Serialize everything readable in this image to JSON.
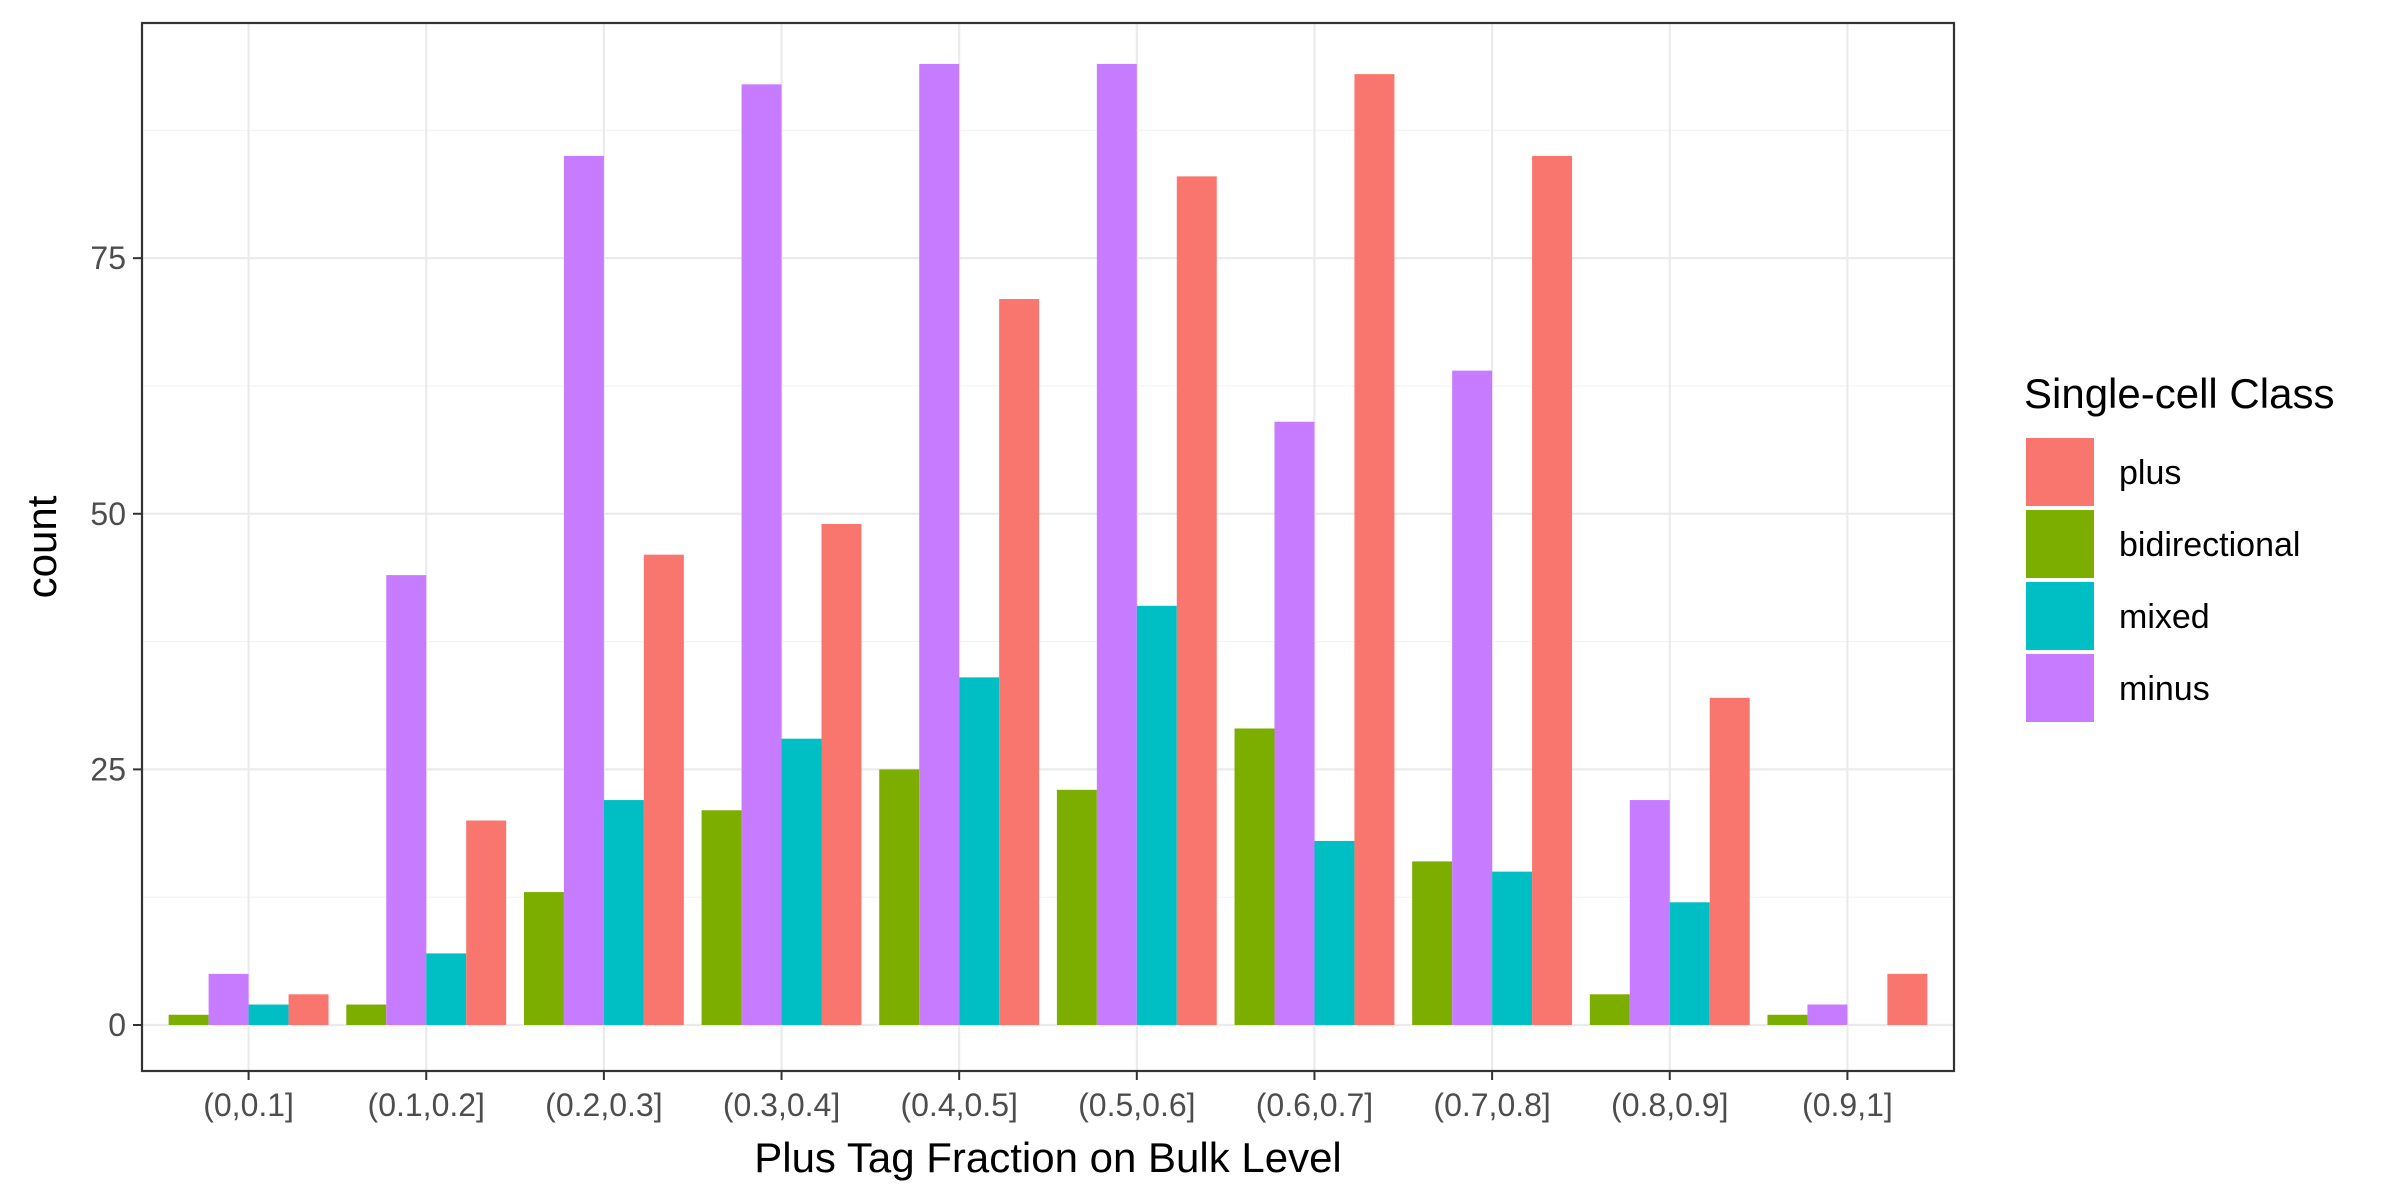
{
  "chart_data": {
    "type": "bar",
    "xlabel": "Plus Tag Fraction on Bulk Level",
    "ylabel": "count",
    "categories": [
      "(0,0.1]",
      "(0.1,0.2]",
      "(0.2,0.3]",
      "(0.3,0.4]",
      "(0.4,0.5]",
      "(0.5,0.6]",
      "(0.6,0.7]",
      "(0.7,0.8]",
      "(0.8,0.9]",
      "(0.9,1]"
    ],
    "yticks": [
      0,
      25,
      50,
      75
    ],
    "ylim": [
      -4.5,
      98
    ],
    "grid": true,
    "legend": {
      "title": "Single-cell Class",
      "position": "right",
      "order": [
        "plus",
        "bidirectional",
        "mixed",
        "minus"
      ]
    },
    "series": [
      {
        "name": "bidirectional",
        "color": "#7CAE00",
        "values": [
          1,
          2,
          13,
          21,
          25,
          23,
          29,
          16,
          3,
          1
        ]
      },
      {
        "name": "minus",
        "color": "#C77CFF",
        "values": [
          5,
          44,
          85,
          92,
          94,
          94,
          59,
          64,
          22,
          2
        ]
      },
      {
        "name": "mixed",
        "color": "#00BFC4",
        "values": [
          2,
          7,
          22,
          28,
          34,
          41,
          18,
          15,
          12,
          null
        ]
      },
      {
        "name": "plus",
        "color": "#F8766D",
        "values": [
          3,
          20,
          46,
          49,
          71,
          83,
          93,
          85,
          32,
          5
        ]
      }
    ]
  }
}
